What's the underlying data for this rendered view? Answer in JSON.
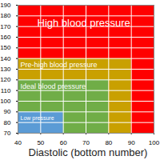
{
  "chart_data": {
    "type": "region",
    "x_label": "Diastolic (bottom number)",
    "xlim": [
      40,
      100
    ],
    "xticks": [
      40,
      50,
      60,
      70,
      80,
      90,
      100
    ],
    "ylim": [
      70,
      190
    ],
    "yticks": [
      70,
      80,
      90,
      100,
      110,
      120,
      130,
      140,
      150,
      160,
      170,
      180,
      190
    ],
    "grid": true,
    "regions": [
      {
        "name": "High blood pressure",
        "color": "#ff0000",
        "x": [
          40,
          100
        ],
        "y": [
          70,
          190
        ]
      },
      {
        "name": "Pre-high blood pressure",
        "color": "#c9a000",
        "x": [
          40,
          90
        ],
        "y": [
          70,
          140
        ]
      },
      {
        "name": "Ideal blood pressure",
        "color": "#70ad47",
        "x": [
          40,
          80
        ],
        "y": [
          70,
          120
        ]
      },
      {
        "name": "Low pressure",
        "color": "#5b9bd5",
        "x": [
          40,
          60
        ],
        "y": [
          70,
          90
        ]
      }
    ]
  }
}
